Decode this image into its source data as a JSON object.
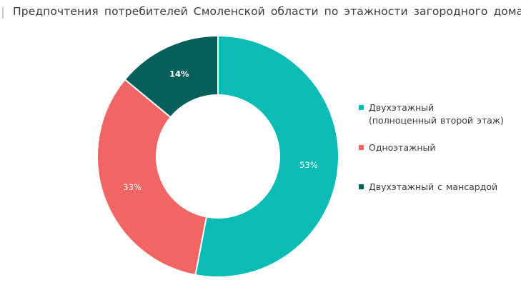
{
  "title": "Предпочтения потребителей Смоленской области по этажности загородного дома",
  "colors": {
    "teal": "#0bbcb6",
    "coral": "#f26565",
    "dark_teal": "#075f5c",
    "separator": "#ffffff"
  },
  "legend": [
    {
      "label": "Двухэтажный\n(полноценный второй этаж)",
      "color": "#0bbcb6"
    },
    {
      "label": "Одноэтажный",
      "color": "#f26565"
    },
    {
      "label": "Двухэтажный с мансардой",
      "color": "#075f5c"
    }
  ],
  "chart_data": {
    "type": "pie",
    "variant": "donut",
    "title": "Предпочтения потребителей Смоленской области по этажности загородного дома",
    "categories": [
      "Двухэтажный (полноценный второй этаж)",
      "Одноэтажный",
      "Двухэтажный с мансардой"
    ],
    "values": [
      53,
      33,
      14
    ],
    "value_labels": [
      "53%",
      "33%",
      "14%"
    ],
    "colors": [
      "#0bbcb6",
      "#f26565",
      "#075f5c"
    ],
    "start": "top (12 o'clock)",
    "direction": "clockwise",
    "legend_position": "right"
  }
}
